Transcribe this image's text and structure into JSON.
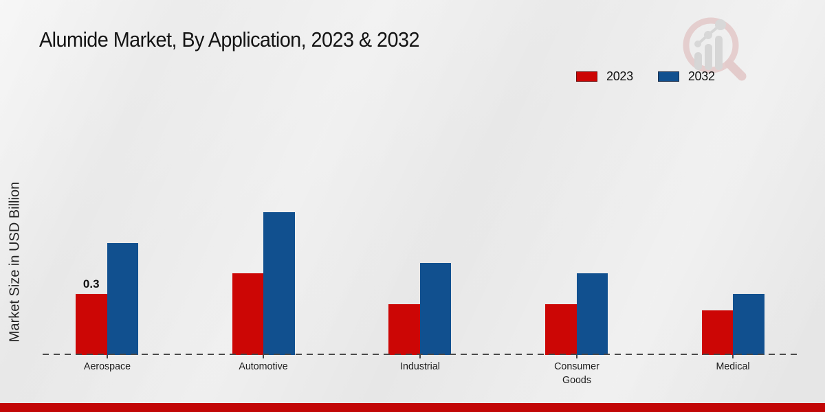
{
  "title": "Alumide Market, By Application, 2023 & 2032",
  "y_axis_label": "Market Size in USD Billion",
  "chart_data": {
    "type": "bar",
    "title": "Alumide Market, By Application, 2023 & 2032",
    "categories": [
      "Aerospace",
      "Automotive",
      "Industrial",
      "Consumer Goods",
      "Medical"
    ],
    "series": [
      {
        "name": "2023",
        "color": "#cc0605",
        "values": [
          0.3,
          0.4,
          0.25,
          0.25,
          0.22
        ]
      },
      {
        "name": "2032",
        "color": "#11508f",
        "values": [
          0.55,
          0.7,
          0.45,
          0.4,
          0.3
        ]
      }
    ],
    "xlabel": "",
    "ylabel": "Market Size in USD Billion",
    "ylim": [
      0,
      0.75
    ],
    "grid": false,
    "legend_position": "top-right",
    "baseline_style": "dashed",
    "annotations": [
      {
        "series": "2023",
        "category": "Aerospace",
        "text": "0.3"
      }
    ]
  },
  "colors": {
    "series_2023": "#cc0605",
    "series_2032": "#11508f",
    "footer_bar": "#c20606",
    "baseline": "#4a4a4a",
    "background": "#ebebeb",
    "text": "#111111",
    "watermark_pink": "#dfb9b9",
    "watermark_gray": "#c6c6c6"
  },
  "watermark": {
    "name": "market-research-magnifier-logo"
  }
}
